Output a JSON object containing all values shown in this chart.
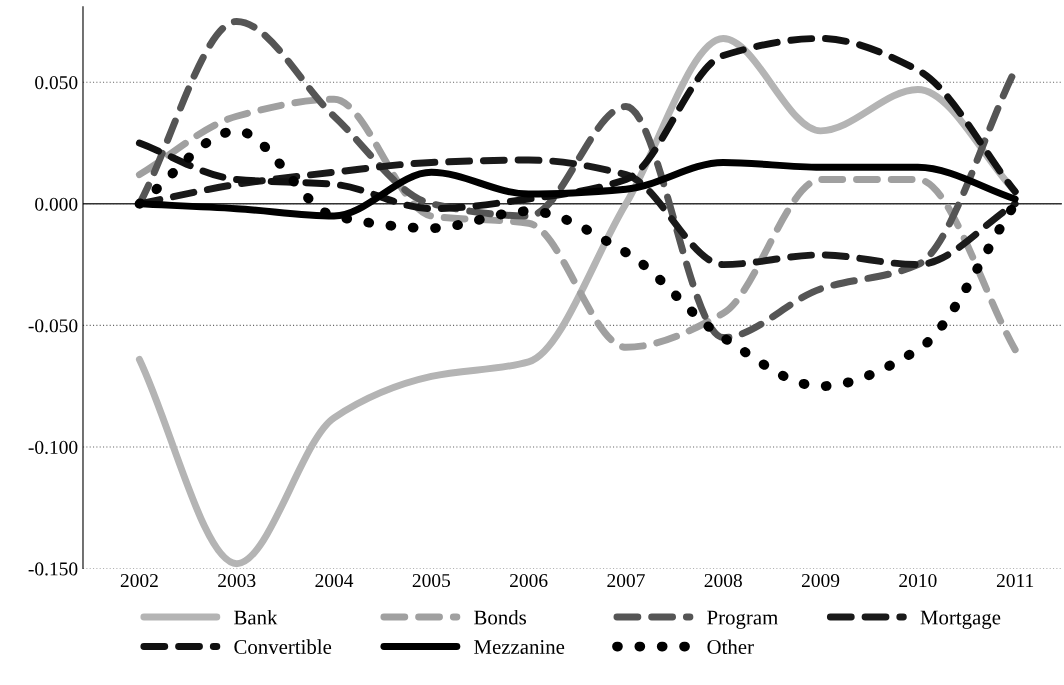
{
  "chart_data": {
    "type": "line",
    "x": [
      2002,
      2003,
      2004,
      2005,
      2006,
      2007,
      2008,
      2009,
      2010,
      2011
    ],
    "xlim": [
      2001.42,
      2011.48
    ],
    "xticks": [
      2002,
      2003,
      2004,
      2005,
      2006,
      2007,
      2008,
      2009,
      2010,
      2011
    ],
    "ylim": [
      -0.15,
      0.081
    ],
    "yticks": [
      {
        "value": -0.15,
        "label": "-0.150"
      },
      {
        "value": -0.1,
        "label": "-0.100"
      },
      {
        "value": -0.05,
        "label": "-0.050"
      },
      {
        "value": 0,
        "label": "0.000"
      },
      {
        "value": 0.05,
        "label": "0.050"
      }
    ],
    "grid": "y",
    "legend": "bottom",
    "marker": "none",
    "series": [
      {
        "name": "Bank",
        "color": "#b4b4b4",
        "line_style": "solid",
        "values": [
          -0.064,
          -0.148,
          -0.088,
          -0.071,
          -0.065,
          0.0,
          0.068,
          0.03,
          0.047,
          0.005
        ]
      },
      {
        "name": "Bonds",
        "color": "#a0a0a0",
        "line_style": "dashed",
        "values": [
          0.012,
          0.036,
          0.043,
          -0.005,
          -0.008,
          -0.059,
          -0.045,
          0.01,
          0.01,
          -0.06
        ]
      },
      {
        "name": "Program",
        "color": "#555555",
        "line_style": "dashed",
        "values": [
          0.0,
          0.075,
          0.036,
          0.0,
          -0.005,
          0.04,
          -0.055,
          -0.035,
          -0.025,
          0.055
        ]
      },
      {
        "name": "Mortgage",
        "color": "#1a1a1a",
        "line_style": "dashed",
        "values": [
          0.0,
          0.008,
          0.013,
          0.017,
          0.018,
          0.012,
          -0.025,
          -0.021,
          -0.025,
          0.0
        ]
      },
      {
        "name": "Convertible",
        "color": "#111111",
        "line_style": "dashed",
        "values": [
          0.025,
          0.01,
          0.008,
          -0.002,
          0.002,
          0.01,
          0.061,
          0.068,
          0.055,
          0.005
        ]
      },
      {
        "name": "Mezzanine",
        "color": "#000000",
        "line_style": "solid",
        "values": [
          0.0,
          -0.002,
          -0.005,
          0.013,
          0.004,
          0.006,
          0.017,
          0.015,
          0.015,
          0.002
        ]
      },
      {
        "name": "Other",
        "color": "#000000",
        "line_style": "dotted",
        "values": [
          0.0,
          0.03,
          -0.005,
          -0.01,
          -0.003,
          -0.02,
          -0.055,
          -0.075,
          -0.06,
          0.0
        ]
      }
    ]
  }
}
